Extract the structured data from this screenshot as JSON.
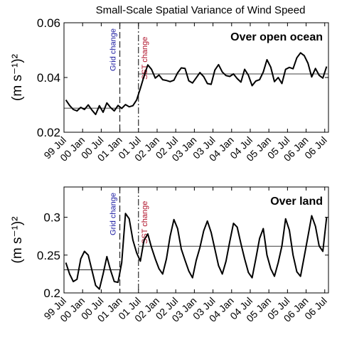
{
  "title": "Small-Scale Spatial Variance of Wind Speed",
  "chart_data": [
    {
      "type": "line",
      "panel_label": "Over open ocean",
      "ylabel": "(m s⁻¹)²",
      "ylim": [
        0.02,
        0.06
      ],
      "yticks": [
        0.02,
        0.04,
        0.06
      ],
      "ytick_labels": [
        "0.02",
        "0.04",
        "0.06"
      ],
      "xlim": [
        1999.5,
        2006.6
      ],
      "xticks": [
        1999.5,
        2000.0,
        2000.5,
        2001.0,
        2001.5,
        2002.0,
        2002.5,
        2003.0,
        2003.5,
        2004.0,
        2004.5,
        2005.0,
        2005.5,
        2006.0,
        2006.5
      ],
      "xtick_labels": [
        "99 Jul",
        "00 Jan",
        "00 Jul",
        "01 Jan",
        "01 Jul",
        "02 Jan",
        "02 Jul",
        "03 Jan",
        "03 Jul",
        "04 Jan",
        "04 Jul",
        "05 Jan",
        "05 Jul",
        "06 Jan",
        "06 Jul"
      ],
      "annotations": [
        {
          "text": "Grid change",
          "x": 2001.0,
          "color": "#1a1aa0",
          "style": "dashed"
        },
        {
          "text": "SST change",
          "x": 2001.5,
          "color": "#b0132b",
          "style": "dashdot"
        }
      ],
      "mean_lines": [
        {
          "x_start": 1999.5,
          "x_end": 2001.0,
          "y": 0.0288
        },
        {
          "x_start": 2001.5,
          "x_end": 2006.6,
          "y": 0.0413
        }
      ],
      "x": [
        1999.55,
        1999.65,
        1999.75,
        1999.85,
        1999.95,
        2000.05,
        2000.15,
        2000.25,
        2000.35,
        2000.45,
        2000.55,
        2000.65,
        2000.75,
        2000.85,
        2000.95,
        2001.05,
        2001.15,
        2001.25,
        2001.35,
        2001.45,
        2001.55,
        2001.65,
        2001.75,
        2001.85,
        2001.95,
        2002.05,
        2002.15,
        2002.25,
        2002.35,
        2002.45,
        2002.55,
        2002.65,
        2002.75,
        2002.85,
        2002.95,
        2003.05,
        2003.15,
        2003.25,
        2003.35,
        2003.45,
        2003.55,
        2003.65,
        2003.75,
        2003.85,
        2003.95,
        2004.05,
        2004.15,
        2004.25,
        2004.35,
        2004.45,
        2004.55,
        2004.65,
        2004.75,
        2004.85,
        2004.95,
        2005.05,
        2005.15,
        2005.25,
        2005.35,
        2005.45,
        2005.55,
        2005.65,
        2005.75,
        2005.85,
        2005.95,
        2006.05,
        2006.15,
        2006.25,
        2006.35,
        2006.45,
        2006.55
      ],
      "y": [
        0.0318,
        0.0298,
        0.0283,
        0.0278,
        0.0291,
        0.0283,
        0.03,
        0.0281,
        0.0265,
        0.0297,
        0.0273,
        0.0307,
        0.029,
        0.0278,
        0.0298,
        0.0287,
        0.0301,
        0.0293,
        0.0297,
        0.0318,
        0.036,
        0.0405,
        0.0446,
        0.043,
        0.0398,
        0.0409,
        0.0392,
        0.0389,
        0.0385,
        0.039,
        0.0417,
        0.0435,
        0.0433,
        0.0388,
        0.038,
        0.0399,
        0.0418,
        0.0403,
        0.0378,
        0.0375,
        0.0427,
        0.0447,
        0.042,
        0.0407,
        0.0404,
        0.0413,
        0.0396,
        0.0383,
        0.043,
        0.0408,
        0.037,
        0.0387,
        0.0392,
        0.042,
        0.0465,
        0.0438,
        0.0385,
        0.04,
        0.0378,
        0.043,
        0.0437,
        0.0432,
        0.0472,
        0.049,
        0.048,
        0.0452,
        0.0402,
        0.0433,
        0.0408,
        0.0398,
        0.044
      ]
    },
    {
      "type": "line",
      "panel_label": "Over land",
      "ylabel": "(m s⁻¹)²",
      "ylim": [
        0.2,
        0.34
      ],
      "yticks": [
        0.2,
        0.25,
        0.3
      ],
      "ytick_labels": [
        "0.2",
        "0.25",
        "0.3"
      ],
      "xlim": [
        1999.5,
        2006.6
      ],
      "xticks": [
        1999.5,
        2000.0,
        2000.5,
        2001.0,
        2001.5,
        2002.0,
        2002.5,
        2003.0,
        2003.5,
        2004.0,
        2004.5,
        2005.0,
        2005.5,
        2006.0,
        2006.5
      ],
      "xtick_labels": [
        "99 Jul",
        "00 Jan",
        "00 Jul",
        "01 Jan",
        "01 Jul",
        "02 Jan",
        "02 Jul",
        "03 Jan",
        "03 Jul",
        "04 Jan",
        "04 Jul",
        "05 Jan",
        "05 Jul",
        "06 Jan",
        "06 Jul"
      ],
      "annotations": [
        {
          "text": "Grid change",
          "x": 2001.0,
          "color": "#1a1aa0",
          "style": "dashed"
        },
        {
          "text": "SST change",
          "x": 2001.5,
          "color": "#b0132b",
          "style": "dashdot"
        }
      ],
      "mean_lines": [
        {
          "x_start": 1999.5,
          "x_end": 2001.0,
          "y": 0.2305
        },
        {
          "x_start": 2001.5,
          "x_end": 2006.6,
          "y": 0.2618
        }
      ],
      "x": [
        1999.55,
        1999.65,
        1999.75,
        1999.85,
        1999.95,
        2000.05,
        2000.15,
        2000.25,
        2000.35,
        2000.45,
        2000.55,
        2000.65,
        2000.75,
        2000.85,
        2000.95,
        2001.05,
        2001.15,
        2001.25,
        2001.35,
        2001.45,
        2001.55,
        2001.65,
        2001.75,
        2001.85,
        2001.95,
        2002.05,
        2002.15,
        2002.25,
        2002.35,
        2002.45,
        2002.55,
        2002.65,
        2002.75,
        2002.85,
        2002.95,
        2003.05,
        2003.15,
        2003.25,
        2003.35,
        2003.45,
        2003.55,
        2003.65,
        2003.75,
        2003.85,
        2003.95,
        2004.05,
        2004.15,
        2004.25,
        2004.35,
        2004.45,
        2004.55,
        2004.65,
        2004.75,
        2004.85,
        2004.95,
        2005.05,
        2005.15,
        2005.25,
        2005.35,
        2005.45,
        2005.55,
        2005.65,
        2005.75,
        2005.85,
        2005.95,
        2006.05,
        2006.15,
        2006.25,
        2006.35,
        2006.45,
        2006.55
      ],
      "y": [
        0.24,
        0.225,
        0.215,
        0.218,
        0.245,
        0.255,
        0.25,
        0.23,
        0.21,
        0.205,
        0.225,
        0.248,
        0.23,
        0.215,
        0.214,
        0.24,
        0.305,
        0.298,
        0.27,
        0.253,
        0.242,
        0.27,
        0.278,
        0.26,
        0.245,
        0.232,
        0.225,
        0.245,
        0.275,
        0.297,
        0.285,
        0.258,
        0.243,
        0.229,
        0.22,
        0.243,
        0.26,
        0.282,
        0.295,
        0.28,
        0.258,
        0.236,
        0.225,
        0.242,
        0.268,
        0.292,
        0.287,
        0.265,
        0.245,
        0.227,
        0.22,
        0.245,
        0.272,
        0.285,
        0.25,
        0.232,
        0.222,
        0.24,
        0.262,
        0.298,
        0.283,
        0.25,
        0.228,
        0.222,
        0.248,
        0.275,
        0.302,
        0.288,
        0.262,
        0.255,
        0.3
      ]
    }
  ]
}
